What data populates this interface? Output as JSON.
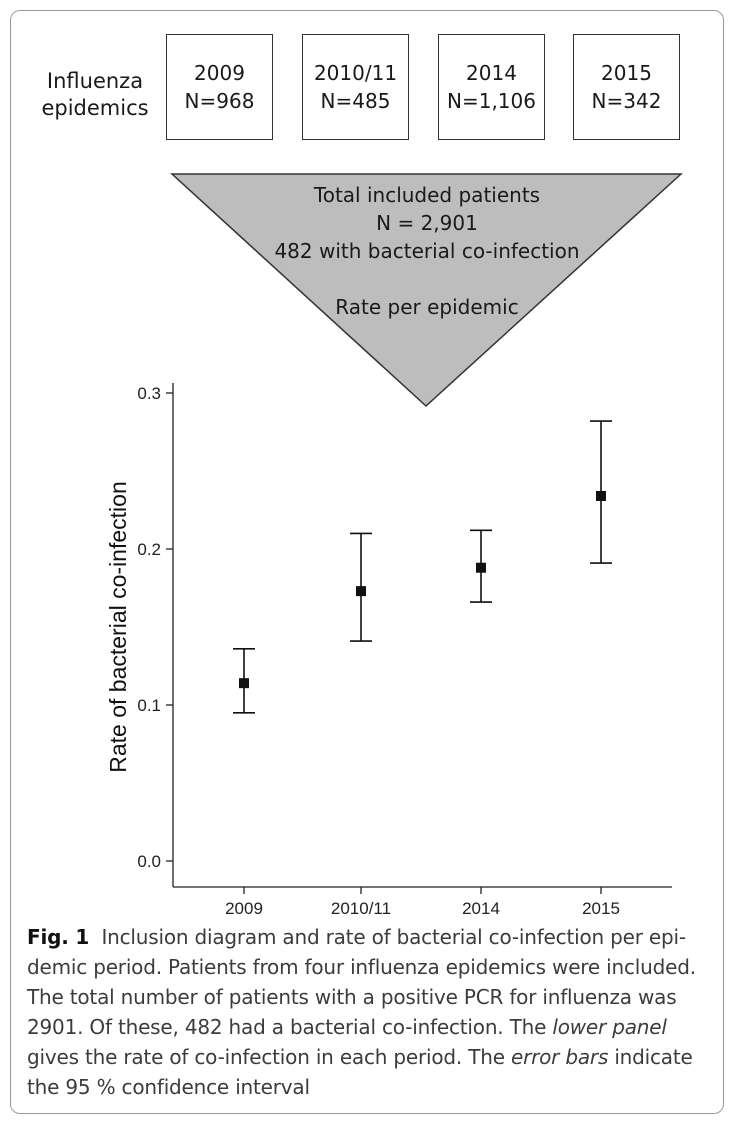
{
  "diagram": {
    "row_label": [
      "Influenza",
      "epidemics"
    ],
    "epidemics": [
      {
        "year": "2009",
        "n": "N=968"
      },
      {
        "year": "2010/11",
        "n": "N=485"
      },
      {
        "year": "2014",
        "n": "N=1,106"
      },
      {
        "year": "2015",
        "n": "N=342"
      }
    ],
    "funnel": {
      "line1": "Total included patients",
      "line2": "N = 2,901",
      "line3": "482 with bacterial co-infection",
      "line4": "Rate per epidemic"
    },
    "colors": {
      "funnel_fill": "#bdbdbd",
      "stroke": "#333333"
    }
  },
  "chart_data": {
    "type": "scatter",
    "categories": [
      "2009",
      "2010/11",
      "2014",
      "2015"
    ],
    "values": [
      0.114,
      0.173,
      0.188,
      0.234
    ],
    "ci_lower": [
      0.095,
      0.141,
      0.166,
      0.191
    ],
    "ci_upper": [
      0.136,
      0.21,
      0.212,
      0.282
    ],
    "ylabel": "Rate of bacterial co-infection",
    "xlabel": "",
    "ylim": [
      0.0,
      0.3
    ],
    "yticks": [
      0.0,
      0.1,
      0.2,
      0.3
    ],
    "ytick_labels": [
      "0.0",
      "0.1",
      "0.2",
      "0.3"
    ],
    "grid": false,
    "marker": "square",
    "color": "#111111"
  },
  "caption": {
    "label": "Fig. 1",
    "part1": "Inclusion diagram and rate of bacterial co-infection per epi-demic period. Patients from four influenza epidemics were included. The total number of patients with a positive PCR for influenza was 2901. Of these, 482 had a bacterial co-infection. The ",
    "em1": "lower panel",
    "part2": " gives the rate of co-infection in each period. The ",
    "em2": "error bars",
    "part3": " indicate the 95 % confidence interval"
  }
}
